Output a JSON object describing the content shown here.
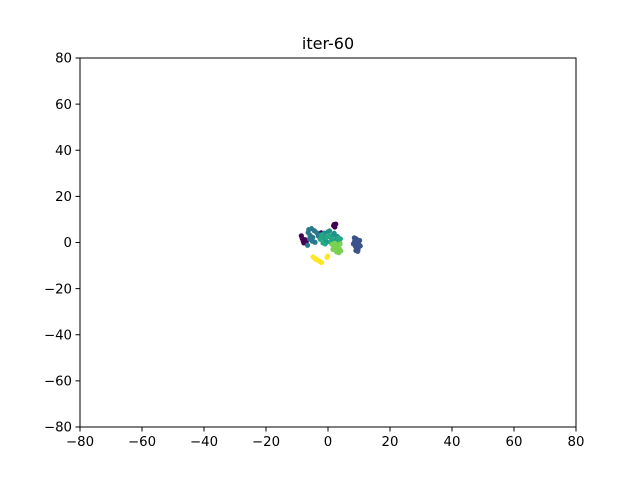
{
  "chart_data": {
    "type": "scatter",
    "title": "iter-60",
    "xlabel": "",
    "ylabel": "",
    "xlim": [
      -80,
      80
    ],
    "ylim": [
      -80,
      80
    ],
    "xticks": [
      -80,
      -60,
      -40,
      -20,
      0,
      20,
      40,
      60,
      80
    ],
    "yticks": [
      -80,
      -60,
      -40,
      -20,
      0,
      20,
      40,
      60,
      80
    ],
    "grid": false,
    "legend": "none",
    "colormap": "viridis",
    "series": [
      {
        "color": "#440154",
        "points": [
          [
            -8.6,
            2.9
          ],
          [
            -8.3,
            1.7
          ],
          [
            -8.0,
            0.6
          ],
          [
            -7.8,
            -0.2
          ],
          [
            -7.4,
            1.2
          ],
          [
            -7.0,
            0.3
          ],
          [
            -2.2,
            4.2
          ],
          [
            -1.9,
            3.7
          ],
          [
            1.8,
            7.3
          ],
          [
            2.2,
            6.7
          ],
          [
            2.5,
            8.0
          ],
          [
            2.0,
            7.8
          ]
        ]
      },
      {
        "color": "#3b528b",
        "points": [
          [
            8.2,
            -0.6
          ],
          [
            8.6,
            0.5
          ],
          [
            8.9,
            -1.8
          ],
          [
            9.1,
            1.6
          ],
          [
            9.4,
            -0.2
          ],
          [
            9.7,
            -2.9
          ],
          [
            10.0,
            -0.9
          ],
          [
            10.2,
            0.9
          ],
          [
            9.0,
            -3.5
          ],
          [
            8.5,
            2.0
          ],
          [
            10.4,
            -1.5
          ],
          [
            9.6,
            -3.8
          ]
        ]
      },
      {
        "color": "#2a788e",
        "points": [
          [
            -6.2,
            5.6
          ],
          [
            -5.3,
            6.0
          ],
          [
            -4.4,
            5.1
          ],
          [
            -5.8,
            3.1
          ],
          [
            -4.9,
            2.2
          ],
          [
            -6.0,
            1.5
          ],
          [
            -3.6,
            4.2
          ],
          [
            -6.4,
            4.3
          ],
          [
            -5.1,
            0.6
          ],
          [
            -6.6,
            -1.2
          ],
          [
            -3.1,
            2.8
          ],
          [
            -4.2,
            0.1
          ]
        ]
      },
      {
        "color": "#21918c",
        "points": [
          [
            -1.8,
            2.8
          ],
          [
            -0.9,
            1.6
          ],
          [
            0.0,
            4.6
          ],
          [
            0.9,
            2.1
          ],
          [
            1.6,
            3.2
          ],
          [
            2.4,
            1.1
          ],
          [
            -0.4,
            0.3
          ],
          [
            1.1,
            -0.3
          ],
          [
            2.0,
            4.0
          ],
          [
            3.0,
            2.6
          ],
          [
            -1.2,
            4.1
          ],
          [
            0.5,
            5.0
          ]
        ]
      },
      {
        "color": "#22a884",
        "points": [
          [
            -2.5,
            1.4
          ],
          [
            -1.6,
            -0.2
          ],
          [
            -0.6,
            2.1
          ],
          [
            0.3,
            3.0
          ],
          [
            1.3,
            1.4
          ],
          [
            2.2,
            -0.4
          ],
          [
            3.3,
            1.8
          ],
          [
            -2.1,
            3.3
          ],
          [
            0.8,
            0.2
          ],
          [
            3.6,
            0.2
          ],
          [
            4.0,
            1.6
          ],
          [
            -0.9,
            -0.6
          ]
        ]
      },
      {
        "color": "#7ad151",
        "points": [
          [
            1.3,
            -0.8
          ],
          [
            1.9,
            -2.1
          ],
          [
            2.6,
            -3.3
          ],
          [
            3.2,
            -1.4
          ],
          [
            3.7,
            -2.8
          ],
          [
            2.2,
            -0.3
          ],
          [
            2.8,
            -4.1
          ],
          [
            3.9,
            -0.6
          ],
          [
            1.6,
            -3.0
          ],
          [
            3.5,
            -4.4
          ],
          [
            2.4,
            -1.6
          ],
          [
            4.1,
            -3.6
          ]
        ]
      },
      {
        "color": "#fde725",
        "points": [
          [
            -4.8,
            -6.3
          ],
          [
            -4.1,
            -7.0
          ],
          [
            -3.4,
            -7.6
          ],
          [
            -2.7,
            -8.2
          ],
          [
            -2.1,
            -8.7
          ],
          [
            -0.3,
            -6.4
          ],
          [
            -0.1,
            -5.9
          ],
          [
            -3.9,
            -7.3
          ]
        ]
      }
    ]
  }
}
